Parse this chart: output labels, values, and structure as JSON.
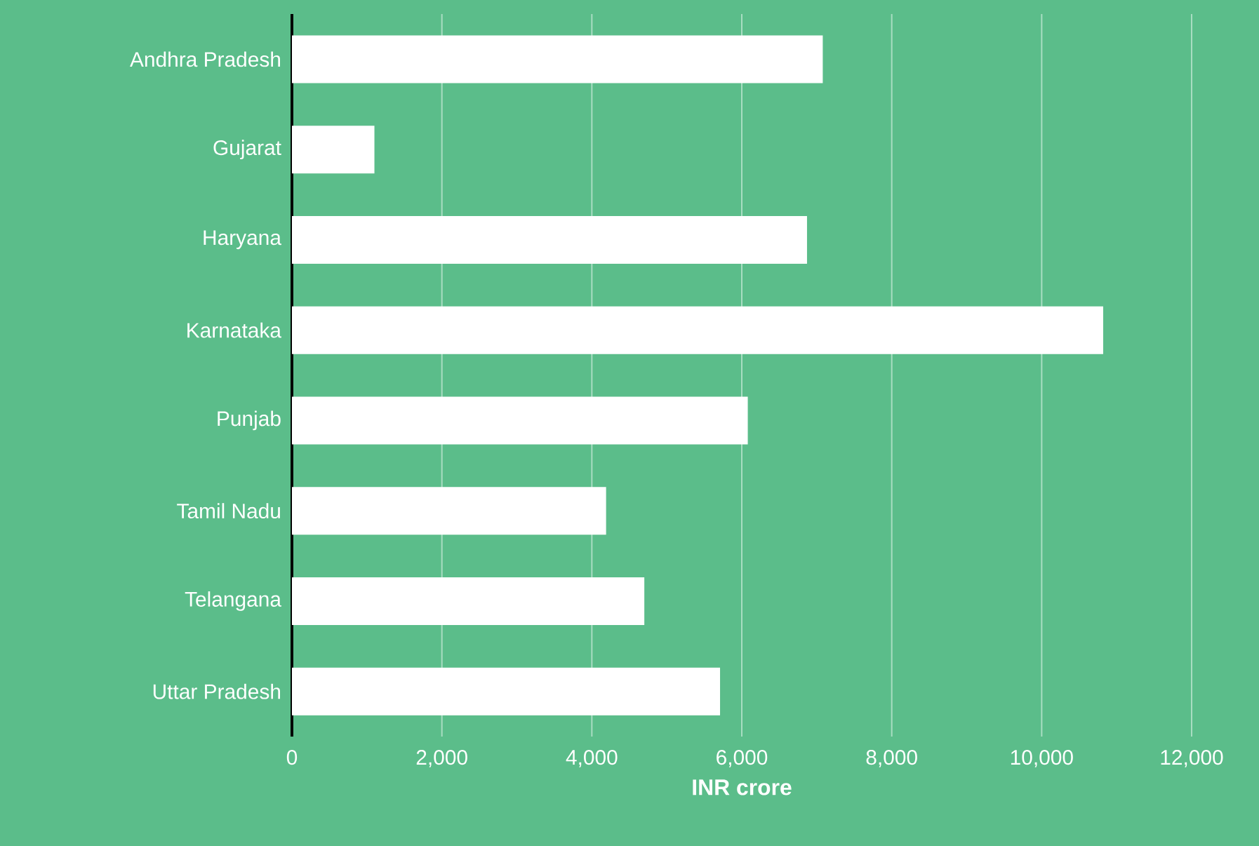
{
  "chart_data": {
    "type": "bar",
    "orientation": "horizontal",
    "xlabel": "INR crore",
    "categories": [
      "Andhra Pradesh",
      "Gujarat",
      "Haryana",
      "Karnataka",
      "Punjab",
      "Tamil Nadu",
      "Telangana",
      "Uttar Pradesh"
    ],
    "values": [
      7080,
      1100,
      6870,
      10820,
      6080,
      4190,
      4700,
      5710
    ],
    "color": "#ffffff",
    "xlim": [
      0,
      12000
    ],
    "xticks": [
      0,
      {
        "value": 2000,
        "label": "2,000"
      },
      {
        "value": 4000,
        "label": "4,000"
      },
      {
        "value": 6000,
        "label": "6,000"
      },
      {
        "value": 8000,
        "label": "8,000"
      },
      {
        "value": 10000,
        "label": "10,000"
      },
      {
        "value": 12000,
        "label": "12,000"
      }
    ],
    "grid": "x"
  }
}
